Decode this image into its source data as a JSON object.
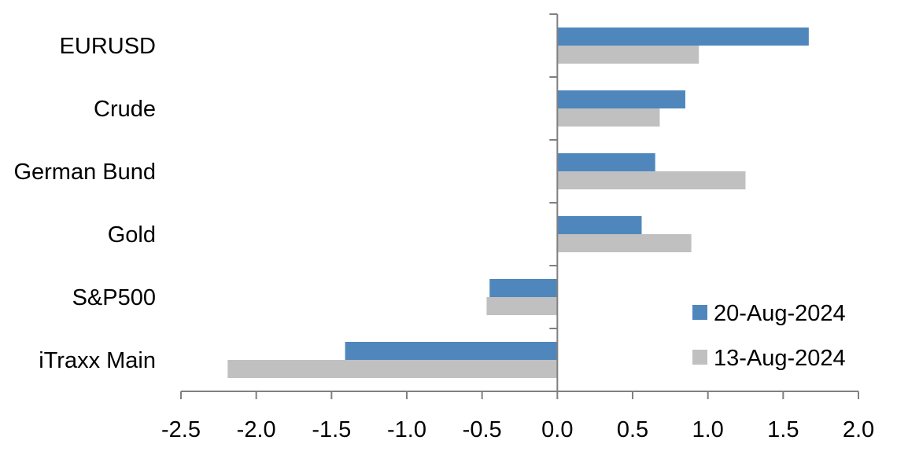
{
  "chart_data": {
    "type": "bar",
    "orientation": "horizontal",
    "categories": [
      "EURUSD",
      "Crude",
      "German Bund",
      "Gold",
      "S&P500",
      "iTraxx Main"
    ],
    "series": [
      {
        "name": "20-Aug-2024",
        "color": "#4f87bd",
        "values": [
          1.67,
          0.85,
          0.65,
          0.56,
          -0.45,
          -1.41
        ]
      },
      {
        "name": "13-Aug-2024",
        "color": "#c0c0c0",
        "values": [
          0.94,
          0.68,
          1.25,
          0.89,
          -0.47,
          -2.19
        ]
      }
    ],
    "xlim": [
      -2.5,
      2.0
    ],
    "xticks": [
      "-2.5",
      "-2.0",
      "-1.5",
      "-1.0",
      "-0.5",
      "0.0",
      "0.5",
      "1.0",
      "1.5",
      "2.0"
    ],
    "title": "",
    "xlabel": "",
    "ylabel": "",
    "grid": false,
    "legend_position": "bottom-right"
  }
}
